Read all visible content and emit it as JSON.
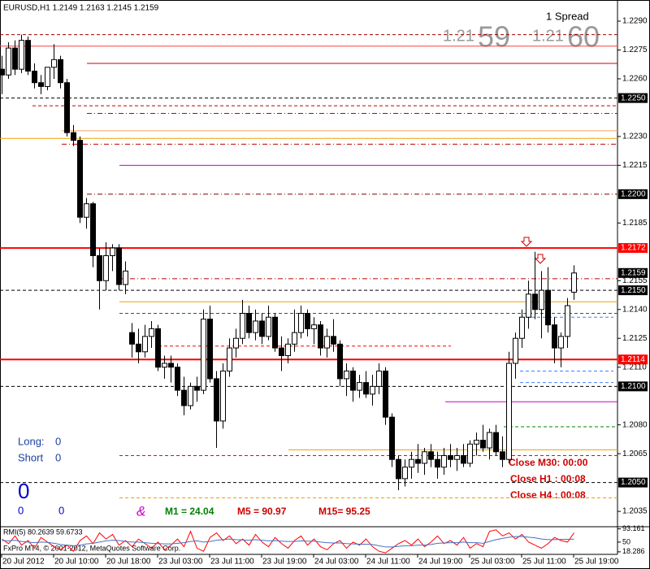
{
  "chart_data": {
    "type": "candlestick",
    "title": "EURUSD,H1  1.2149 1.2163 1.2145 1.2159",
    "categories": [
      "20 Jul 2012",
      null,
      null,
      null,
      null,
      null,
      null,
      null,
      "20 Jul 10:00",
      null,
      null,
      null,
      null,
      null,
      null,
      null,
      "20 Jul 18:00",
      null,
      null,
      null,
      null,
      null,
      null,
      null,
      "23 Jul 03:00",
      null,
      null,
      null,
      null,
      null,
      null,
      null,
      "23 Jul 11:00",
      null,
      null,
      null,
      null,
      null,
      null,
      null,
      "23 Jul 19:00",
      null,
      null,
      null,
      null,
      null,
      null,
      null,
      "24 Jul 03:00",
      null,
      null,
      null,
      null,
      null,
      null,
      null,
      "24 Jul 11:00",
      null,
      null,
      null,
      null,
      null,
      null,
      null,
      "24 Jul 19:00",
      null,
      null,
      null,
      null,
      null,
      null,
      null,
      "25 Jul 03:00",
      null,
      null,
      null,
      null,
      null,
      null,
      null,
      "25 Jul 11:00",
      null,
      null,
      null,
      null,
      null,
      null,
      null,
      "25 Jul 19:00"
    ],
    "open": [
      1.2265,
      1.2262,
      1.2276,
      1.2265,
      1.228,
      1.2264,
      1.2258,
      1.2256,
      1.2266,
      1.227,
      1.2258,
      1.2232,
      1.2228,
      1.2188,
      1.2195,
      1.2168,
      1.2155,
      1.2168,
      1.2172,
      1.2153,
      1.2128,
      1.2122,
      1.2118,
      1.2126,
      1.213,
      1.211,
      1.2112,
      1.211,
      1.2098,
      1.209,
      1.21,
      1.2098,
      1.2135,
      1.2104,
      1.2082,
      1.2108,
      1.212,
      1.2125,
      1.2138,
      1.2128,
      1.2134,
      1.2126,
      1.2136,
      1.212,
      1.2116,
      1.2122,
      1.2128,
      1.2138,
      1.213,
      1.2132,
      1.212,
      1.2126,
      1.2122,
      1.2104,
      1.2108,
      1.2098,
      1.2102,
      1.2096,
      1.21,
      1.2108,
      1.2084,
      1.2062,
      1.2052,
      1.2058,
      1.2062,
      1.206,
      1.2066,
      1.2062,
      1.2058,
      1.2064,
      1.2062,
      1.2064,
      1.206,
      1.207,
      1.2072,
      1.2068,
      1.2076,
      1.2066,
      1.2062,
      1.2112,
      1.2125,
      1.2136,
      1.2148,
      1.214,
      1.215,
      1.2132,
      1.212,
      1.2126,
      1.2149
    ],
    "high": [
      1.2272,
      1.2279,
      1.228,
      1.2283,
      1.2282,
      1.2268,
      1.2262,
      1.2266,
      1.2278,
      1.2272,
      1.226,
      1.2236,
      1.223,
      1.2198,
      1.2196,
      1.2172,
      1.2175,
      1.2174,
      1.2174,
      1.2165,
      1.2133,
      1.213,
      1.2132,
      1.2134,
      1.2132,
      1.2116,
      1.2116,
      1.2112,
      1.2105,
      1.2102,
      1.2105,
      1.214,
      1.2142,
      1.2108,
      1.2112,
      1.2125,
      1.213,
      1.2145,
      1.2142,
      1.214,
      1.2138,
      1.2142,
      1.2138,
      1.2126,
      1.2125,
      1.214,
      1.2142,
      1.214,
      1.2136,
      1.2134,
      1.213,
      1.2135,
      1.2124,
      1.2112,
      1.211,
      1.2106,
      1.2108,
      1.2106,
      1.2112,
      1.211,
      1.2086,
      1.2064,
      1.2062,
      1.2066,
      1.207,
      1.2068,
      1.207,
      1.2066,
      1.2068,
      1.207,
      1.2068,
      1.207,
      1.2072,
      1.2076,
      1.208,
      1.2078,
      1.208,
      1.2074,
      1.2118,
      1.2128,
      1.214,
      1.2155,
      1.217,
      1.216,
      1.2162,
      1.2136,
      1.2128,
      1.2146,
      1.2163
    ],
    "low": [
      1.2252,
      1.226,
      1.2262,
      1.2263,
      1.2262,
      1.2255,
      1.2252,
      1.2254,
      1.226,
      1.2255,
      1.223,
      1.2225,
      1.2185,
      1.2182,
      1.2162,
      1.214,
      1.215,
      1.216,
      1.215,
      1.2148,
      1.2115,
      1.2112,
      1.2115,
      1.212,
      1.2108,
      1.2104,
      1.2102,
      1.2095,
      1.2085,
      1.2088,
      1.2092,
      1.2096,
      1.2102,
      1.2068,
      1.2078,
      1.2105,
      1.2115,
      1.2122,
      1.2125,
      1.2124,
      1.2122,
      1.2124,
      1.2118,
      1.2108,
      1.2112,
      1.2118,
      1.2125,
      1.2126,
      1.2122,
      1.2116,
      1.2115,
      1.2118,
      1.21,
      1.2095,
      1.2092,
      1.2094,
      1.2094,
      1.209,
      1.2096,
      1.208,
      1.2058,
      1.2046,
      1.2048,
      1.2052,
      1.2055,
      1.2054,
      1.2058,
      1.2052,
      1.2054,
      1.2058,
      1.2056,
      1.2058,
      1.2058,
      1.2064,
      1.2066,
      1.2062,
      1.2064,
      1.2058,
      1.206,
      1.2104,
      1.212,
      1.213,
      1.2135,
      1.2125,
      1.2128,
      1.2112,
      1.211,
      1.212,
      1.2145
    ],
    "close": [
      1.2262,
      1.2276,
      1.2265,
      1.228,
      1.2264,
      1.2258,
      1.2256,
      1.2266,
      1.227,
      1.2258,
      1.2232,
      1.2228,
      1.2188,
      1.2195,
      1.2168,
      1.2155,
      1.2168,
      1.2172,
      1.2153,
      1.216,
      1.2122,
      1.2118,
      1.2126,
      1.213,
      1.211,
      1.2112,
      1.211,
      1.2098,
      1.209,
      1.21,
      1.2098,
      1.2135,
      1.2104,
      1.2082,
      1.2108,
      1.212,
      1.2125,
      1.2138,
      1.2128,
      1.2134,
      1.2126,
      1.2136,
      1.212,
      1.2116,
      1.2122,
      1.2128,
      1.2138,
      1.213,
      1.2132,
      1.212,
      1.2126,
      1.2122,
      1.2104,
      1.2108,
      1.2098,
      1.2102,
      1.2096,
      1.21,
      1.2108,
      1.2084,
      1.2062,
      1.2052,
      1.2058,
      1.2062,
      1.206,
      1.2066,
      1.2062,
      1.2058,
      1.2064,
      1.2062,
      1.2064,
      1.206,
      1.207,
      1.2072,
      1.2068,
      1.2076,
      1.2066,
      1.2062,
      1.2112,
      1.2125,
      1.2136,
      1.2148,
      1.214,
      1.215,
      1.2132,
      1.212,
      1.2126,
      1.2142,
      1.2159
    ],
    "bull_color": "#ffffff",
    "bear_color": "#000000",
    "ylim": [
      1.2027,
      1.2301
    ],
    "yticks": [
      {
        "value": 1.229,
        "label": "1.2290"
      },
      {
        "value": 1.2275,
        "label": "1.2275"
      },
      {
        "value": 1.226,
        "label": "1.2260"
      },
      {
        "value": 1.223,
        "label": "1.2230"
      },
      {
        "value": 1.2215,
        "label": "1.2215"
      },
      {
        "value": 1.2185,
        "label": "1.2185"
      },
      {
        "value": 1.2155,
        "label": "1.2155"
      },
      {
        "value": 1.214,
        "label": "1.2140"
      },
      {
        "value": 1.2125,
        "label": "1.2125"
      },
      {
        "value": 1.211,
        "label": "1.2110"
      },
      {
        "value": 1.208,
        "label": "1.2080"
      },
      {
        "value": 1.2065,
        "label": "1.2065"
      },
      {
        "value": 1.2035,
        "label": "1.2035"
      }
    ],
    "price_markers": [
      {
        "value": 1.225,
        "label": "1.2250",
        "color": "#000000"
      },
      {
        "value": 1.22,
        "label": "1.2200",
        "color": "#000000"
      },
      {
        "value": 1.2172,
        "label": "1.2172",
        "color": "#ff0000"
      },
      {
        "value": 1.2159,
        "label": "1.2159",
        "color": "#000000"
      },
      {
        "value": 1.215,
        "label": "1.2150",
        "color": "#000000"
      },
      {
        "value": 1.2114,
        "label": "1.2114",
        "color": "#ff0000"
      },
      {
        "value": 1.21,
        "label": "1.2100",
        "color": "#000000"
      },
      {
        "value": 1.205,
        "label": "1.2050",
        "color": "#000000"
      }
    ],
    "levels": [
      {
        "value": 1.2283,
        "color": "#a00000",
        "style": "dash",
        "width": 1
      },
      {
        "value": 1.2277,
        "color": "#ff4040",
        "style": "solid",
        "width": 1
      },
      {
        "value": 1.2268,
        "color": "#d00000",
        "style": "solid",
        "width": 1
      },
      {
        "value": 1.225,
        "color": "#000000",
        "style": "dash",
        "width": 1
      },
      {
        "value": 1.2246,
        "color": "#c00000",
        "style": "dash",
        "width": 1
      },
      {
        "value": 1.2242,
        "color": "#c00000",
        "style": "dashdot",
        "width": 1
      },
      {
        "value": 1.2233,
        "color": "#f4a460",
        "style": "solid",
        "width": 1
      },
      {
        "value": 1.2229,
        "color": "#f0a000",
        "style": "solid",
        "width": 1
      },
      {
        "value": 1.2226,
        "color": "#c00000",
        "style": "dashdot",
        "width": 1
      },
      {
        "value": 1.2215,
        "color": "#cc00cc",
        "style": "solid",
        "width": 1
      },
      {
        "value": 1.22,
        "color": "#800000",
        "style": "dashdot",
        "width": 1
      },
      {
        "value": 1.2172,
        "color": "#ff0000",
        "style": "solid",
        "width": 2
      },
      {
        "value": 1.2156,
        "color": "#c00000",
        "style": "dashdot",
        "width": 1
      },
      {
        "value": 1.215,
        "color": "#000000",
        "style": "dash",
        "width": 1
      },
      {
        "value": 1.2144,
        "color": "#f0a000",
        "style": "solid",
        "width": 1
      },
      {
        "value": 1.2138,
        "color": "#008000",
        "style": "dash",
        "width": 1
      },
      {
        "value": 1.2121,
        "color": "#ff0000",
        "style": "dash",
        "width": 1
      },
      {
        "value": 1.2114,
        "color": "#ff0000",
        "style": "solid",
        "width": 2
      },
      {
        "value": 1.21,
        "color": "#000000",
        "style": "dash",
        "width": 1
      },
      {
        "value": 1.2092,
        "color": "#cc00cc",
        "style": "solid",
        "width": 1
      },
      {
        "value": 1.2079,
        "color": "#008000",
        "style": "dash",
        "width": 1
      },
      {
        "value": 1.2067,
        "color": "#f0a000",
        "style": "solid",
        "width": 1
      },
      {
        "value": 1.2064,
        "color": "#ff0000",
        "style": "dash",
        "width": 1
      },
      {
        "value": 1.205,
        "color": "#000000",
        "style": "dash",
        "width": 1
      },
      {
        "value": 1.2042,
        "color": "#f0a000",
        "style": "dash",
        "width": 1
      },
      {
        "value": 1.2136,
        "color": "#4080ff",
        "style": "dash",
        "width": 1
      },
      {
        "value": 1.2108,
        "color": "#4080ff",
        "style": "dash",
        "width": 1
      },
      {
        "value": 1.2102,
        "color": "#4080ff",
        "style": "dash",
        "width": 1
      }
    ],
    "rmi": {
      "title": "RMI(5) 80.2639 59.6733",
      "ylim": [
        10,
        100
      ],
      "yticks": [
        93.161,
        50,
        18.286
      ],
      "series": [
        {
          "color": "#ff0000",
          "values": [
            60,
            45,
            70,
            40,
            55,
            30,
            65,
            50,
            35,
            25,
            40,
            20,
            55,
            70,
            45,
            80,
            60,
            75,
            40,
            55,
            35,
            60,
            45,
            30,
            50,
            25,
            40,
            60,
            35,
            85,
            30,
            20,
            65,
            80,
            55,
            70,
            45,
            60,
            40,
            75,
            50,
            35,
            65,
            45,
            30,
            55,
            70,
            40,
            60,
            35,
            25,
            45,
            55,
            30,
            50,
            40,
            60,
            35,
            20,
            15,
            30,
            45,
            55,
            40,
            60,
            35,
            50,
            70,
            45,
            55,
            40,
            65,
            30,
            45,
            35,
            85,
            90,
            70,
            80,
            60,
            75,
            50,
            40,
            30,
            45,
            65,
            55,
            50,
            80.2639
          ]
        },
        {
          "color": "#4472c4",
          "values": [
            55,
            54,
            56,
            52,
            50,
            48,
            50,
            49,
            46,
            42,
            40,
            38,
            40,
            44,
            46,
            50,
            54,
            56,
            55,
            52,
            50,
            50,
            48,
            46,
            45,
            44,
            44,
            46,
            48,
            52,
            54,
            50,
            52,
            56,
            58,
            60,
            58,
            57,
            56,
            58,
            56,
            54,
            55,
            53,
            52,
            52,
            54,
            53,
            53,
            50,
            48,
            47,
            47,
            45,
            44,
            43,
            43,
            42,
            38,
            34,
            34,
            36,
            38,
            38,
            40,
            40,
            42,
            46,
            47,
            48,
            48,
            50,
            48,
            48,
            46,
            52,
            58,
            62,
            66,
            68,
            68,
            66,
            64,
            60,
            58,
            58,
            59,
            59,
            59.6733
          ]
        }
      ]
    }
  },
  "overlay": {
    "spread": "1 Spread",
    "bid_prefix": "1.21",
    "bid_pips": "59",
    "ask_prefix": "1.21",
    "ask_pips": "60",
    "long_label": "Long:",
    "long_value": "0",
    "short_label": "Short",
    "short_value": "0",
    "balance": "0",
    "counters": [
      "0",
      "0"
    ],
    "symbol": "&",
    "momentum": [
      "M1 = 24.04",
      "M5 =  90.97",
      "M15=  95.25"
    ],
    "close_timers": [
      "Close M30: 00:00",
      "Close H1 : 00:08",
      "Close H4 : 00:08"
    ],
    "copyright": "FxPro MT4, © 2001-2012, MetaQuotes Software Corp."
  }
}
